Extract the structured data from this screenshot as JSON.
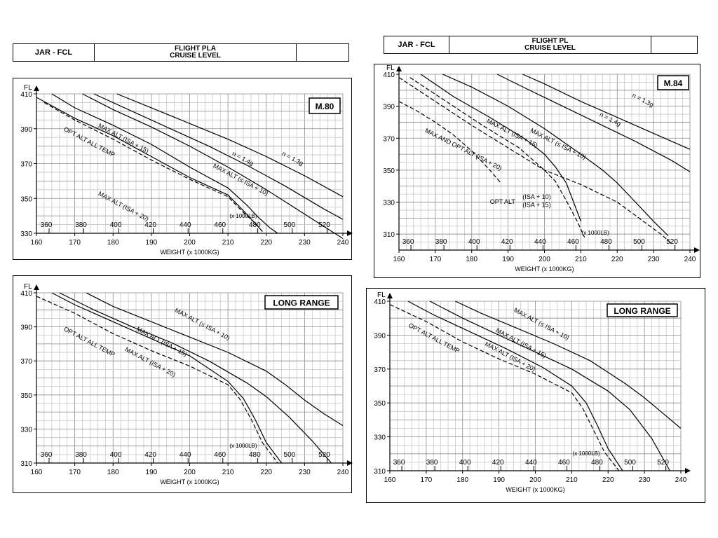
{
  "headers": [
    {
      "left": "JAR - FCL",
      "title_line1": "FLIGHT PLA",
      "title_line2": "CRUISE LEVEL"
    },
    {
      "left": "JAR - FCL",
      "title_line1": "FLIGHT PL",
      "title_line2": "CRUISE LEVEL"
    }
  ],
  "chart_data": [
    {
      "type": "line",
      "title": "M.80",
      "fl_label": "FL",
      "xlabel": "WEIGHT (x 1000KG)",
      "lb_label": "(x 1000LB)",
      "xlim": [
        160,
        240
      ],
      "ylim": [
        330,
        410
      ],
      "x_ticks": [
        160,
        170,
        180,
        190,
        200,
        210,
        220,
        230,
        240
      ],
      "y_ticks": [
        330,
        350,
        370,
        390,
        410
      ],
      "lb_ticks": [
        360,
        380,
        400,
        420,
        440,
        460,
        480,
        500,
        520
      ],
      "grid": true,
      "series": [
        {
          "name": "n = 1.3g",
          "dash": false,
          "x": [
            181,
            190,
            200,
            210,
            220,
            230,
            240
          ],
          "y": [
            410,
            402,
            393,
            384,
            374,
            363,
            351
          ]
        },
        {
          "name": "n = 1.4g",
          "dash": false,
          "x": [
            175,
            185,
            195,
            205,
            215,
            225,
            235,
            240
          ],
          "y": [
            410,
            400,
            390,
            380,
            369,
            357,
            344,
            338
          ]
        },
        {
          "name": "MAX ALT (≤ ISA + 10)",
          "dash": false,
          "x": [
            172,
            180,
            190,
            200,
            210,
            220,
            230,
            240
          ],
          "y": [
            410,
            401,
            391,
            380,
            368,
            355,
            341,
            327
          ]
        },
        {
          "name": "MAX ALT (ISA + 15)",
          "dash": false,
          "x": [
            164,
            170,
            180,
            190,
            200,
            210,
            215,
            218,
            221,
            223
          ],
          "y": [
            410,
            402,
            392,
            381,
            368,
            356,
            346,
            339,
            333,
            330
          ]
        },
        {
          "name": "MAX ALT (ISA + 20)",
          "dash": false,
          "x": [
            160,
            170,
            180,
            190,
            200,
            210,
            214,
            217,
            219
          ],
          "y": [
            408,
            396,
            386,
            374,
            362,
            352,
            343,
            336,
            331
          ]
        },
        {
          "name": "OPT ALT ALL TEMP",
          "dash": true,
          "x": [
            162,
            170,
            180,
            190,
            200,
            210,
            214,
            217,
            219
          ],
          "y": [
            405,
            395,
            384,
            372,
            361,
            351,
            342,
            336,
            331
          ]
        }
      ],
      "annotations": [
        {
          "text": "n = 1.3g",
          "x": 224,
          "y": 375
        },
        {
          "text": "n = 1.4g",
          "x": 211,
          "y": 375
        },
        {
          "text": "MAX ALT (≤ ISA + 10)",
          "x": 206,
          "y": 368
        },
        {
          "text": "MAX ALT (ISA + 15)",
          "x": 176,
          "y": 391
        },
        {
          "text": "OPT ALT ALL TEMP",
          "x": 167,
          "y": 389
        },
        {
          "text": "MAX ALT (ISA + 20)",
          "x": 176,
          "y": 352
        }
      ]
    },
    {
      "type": "line",
      "title": "M.84",
      "fl_label": "FL",
      "xlabel": "WEIGHT (x 1000KG)",
      "lb_label": "(x 1000LB)",
      "xlim": [
        160,
        240
      ],
      "ylim": [
        300,
        410
      ],
      "x_ticks": [
        160,
        170,
        180,
        190,
        200,
        210,
        220,
        230,
        240
      ],
      "y_ticks": [
        310,
        330,
        350,
        370,
        390,
        410
      ],
      "lb_ticks": [
        360,
        380,
        400,
        420,
        440,
        460,
        480,
        500,
        520
      ],
      "grid": true,
      "series": [
        {
          "name": "n = 1.3g",
          "dash": false,
          "x": [
            194,
            200,
            210,
            220,
            230,
            240
          ],
          "y": [
            410,
            404,
            393,
            383,
            373,
            363
          ]
        },
        {
          "name": "n = 1.4g",
          "dash": false,
          "x": [
            187,
            195,
            205,
            215,
            225,
            235,
            240
          ],
          "y": [
            410,
            401,
            390,
            379,
            368,
            356,
            349
          ]
        },
        {
          "name": "MAX ALT (≤ ISA + 10)",
          "dash": false,
          "x": [
            172,
            180,
            190,
            200,
            210,
            216,
            220,
            225,
            230,
            234
          ],
          "y": [
            410,
            402,
            390,
            376,
            360,
            350,
            342,
            330,
            318,
            309
          ]
        },
        {
          "name": "MAX ALT (ISA + 15)",
          "dash": false,
          "x": [
            166,
            175,
            185,
            195,
            200,
            203,
            206,
            208,
            210
          ],
          "y": [
            410,
            396,
            383,
            369,
            360,
            352,
            342,
            330,
            318
          ]
        },
        {
          "name": "MAX AND OPT ALT (ISA + 20)",
          "dash": true,
          "x": [
            160,
            165,
            170,
            175,
            180,
            185,
            188
          ],
          "y": [
            393,
            387,
            380,
            372,
            362,
            350,
            342
          ]
        },
        {
          "name": "OPT ALT (ISA + 10)",
          "dash": true,
          "x": [
            160,
            170,
            180,
            190,
            200,
            210,
            220,
            226,
            232,
            235
          ],
          "y": [
            408,
            393,
            378,
            364,
            350,
            341,
            330,
            320,
            310,
            304
          ]
        },
        {
          "name": "OPT ALT (ISA + 15)",
          "dash": true,
          "x": [
            163,
            173,
            183,
            193,
            200,
            203,
            206,
            209,
            211
          ],
          "y": [
            408,
            393,
            378,
            364,
            350,
            343,
            331,
            318,
            308
          ]
        }
      ],
      "annotations": [
        {
          "text": "n = 1.3g",
          "x": 224,
          "y": 396
        },
        {
          "text": "n = 1.4g",
          "x": 215,
          "y": 384
        },
        {
          "text": "MAX ALT (≤ ISA + 10)",
          "x": 196,
          "y": 374
        },
        {
          "text": "MAX ALT (ISA + 15)",
          "x": 184,
          "y": 380
        },
        {
          "text": "MAX AND OPT ALT (ISA + 20)",
          "x": 167,
          "y": 374
        },
        {
          "text": "OPT ALT",
          "x": 185,
          "y": 329
        },
        {
          "text": "(ISA + 10)",
          "x": 194,
          "y": 332
        },
        {
          "text": "(ISA + 15)",
          "x": 194,
          "y": 327
        }
      ]
    },
    {
      "type": "line",
      "title": "LONG RANGE",
      "fl_label": "FL",
      "xlabel": "WEIGHT (x 1000KG)",
      "lb_label": "(x 1000LB)",
      "xlim": [
        160,
        240
      ],
      "ylim": [
        310,
        410
      ],
      "x_ticks": [
        160,
        170,
        180,
        190,
        200,
        210,
        220,
        230,
        240
      ],
      "y_ticks": [
        310,
        330,
        350,
        370,
        390,
        410
      ],
      "lb_ticks": [
        360,
        380,
        400,
        420,
        440,
        460,
        480,
        500,
        520
      ],
      "grid": true,
      "series": [
        {
          "name": "MAX ALT (≤ ISA + 10)",
          "dash": false,
          "x": [
            173,
            180,
            190,
            200,
            210,
            220,
            225,
            230,
            235,
            240
          ],
          "y": [
            410,
            402,
            393,
            384,
            375,
            364,
            356,
            347,
            339,
            332
          ]
        },
        {
          "name": "MAX ALT (ISA + 15)",
          "dash": false,
          "x": [
            166,
            175,
            185,
            195,
            205,
            215,
            220,
            226,
            232,
            237
          ],
          "y": [
            410,
            400,
            390,
            381,
            370,
            357,
            349,
            337,
            323,
            310
          ]
        },
        {
          "name": "MAX ALT (ISA + 20)",
          "dash": false,
          "x": [
            164,
            170,
            180,
            190,
            200,
            210,
            214,
            217,
            220,
            224
          ],
          "y": [
            410,
            403,
            393,
            383,
            373,
            358,
            348,
            336,
            322,
            310
          ]
        },
        {
          "name": "OPT ALT ALL TEMP",
          "dash": true,
          "x": [
            160,
            170,
            180,
            190,
            200,
            210,
            213,
            216,
            219,
            223
          ],
          "y": [
            408,
            398,
            386,
            376,
            367,
            356,
            348,
            336,
            322,
            310
          ]
        }
      ],
      "annotations": [
        {
          "text": "MAX ALT (≤ ISA + 10)",
          "x": 196,
          "y": 399
        },
        {
          "text": "MAX ALT (ISA + 15)",
          "x": 186,
          "y": 388
        },
        {
          "text": "MAX ALT (ISA + 20)",
          "x": 183,
          "y": 376
        },
        {
          "text": "OPT ALT ALL TEMP",
          "x": 167,
          "y": 388
        }
      ]
    },
    {
      "type": "line",
      "title": "LONG RANGE",
      "fl_label": "FL",
      "xlabel": "WEIGHT (x 1000KG)",
      "lb_label": "(x 1000LB)",
      "xlim": [
        160,
        240
      ],
      "ylim": [
        310,
        410
      ],
      "x_ticks": [
        160,
        170,
        180,
        190,
        200,
        210,
        220,
        230,
        240
      ],
      "y_ticks": [
        310,
        330,
        350,
        370,
        390,
        410
      ],
      "lb_ticks": [
        360,
        380,
        400,
        420,
        440,
        460,
        480,
        500,
        520
      ],
      "grid": true,
      "series": [
        {
          "name": "MAX ALT (≤ ISA + 10)",
          "dash": false,
          "x": [
            178,
            185,
            195,
            205,
            215,
            220,
            225,
            230,
            235,
            240
          ],
          "y": [
            410,
            403,
            394,
            385,
            375,
            368,
            361,
            353,
            344,
            335
          ]
        },
        {
          "name": "MAX ALT (ISA + 15)",
          "dash": false,
          "x": [
            171,
            180,
            190,
            200,
            210,
            220,
            226,
            232,
            237
          ],
          "y": [
            410,
            400,
            390,
            380,
            370,
            357,
            346,
            329,
            310
          ]
        },
        {
          "name": "MAX ALT (ISA + 20)",
          "dash": false,
          "x": [
            165,
            172,
            182,
            192,
            202,
            210,
            214,
            217,
            220,
            224
          ],
          "y": [
            410,
            402,
            392,
            382,
            371,
            360,
            350,
            337,
            323,
            310
          ]
        },
        {
          "name": "OPT ALT ALL TEMP",
          "dash": true,
          "x": [
            160,
            170,
            180,
            190,
            200,
            210,
            213,
            216,
            219,
            223
          ],
          "y": [
            408,
            398,
            386,
            376,
            367,
            356,
            347,
            334,
            321,
            310
          ]
        }
      ],
      "annotations": [
        {
          "text": "MAX ALT (≤ ISA + 10)",
          "x": 194,
          "y": 404
        },
        {
          "text": "MAX ALT (ISA + 15)",
          "x": 189,
          "y": 392
        },
        {
          "text": "MAX ALT (ISA + 20)",
          "x": 186,
          "y": 384
        },
        {
          "text": "OPT ALT ALL TEMP",
          "x": 165,
          "y": 395
        }
      ]
    }
  ]
}
